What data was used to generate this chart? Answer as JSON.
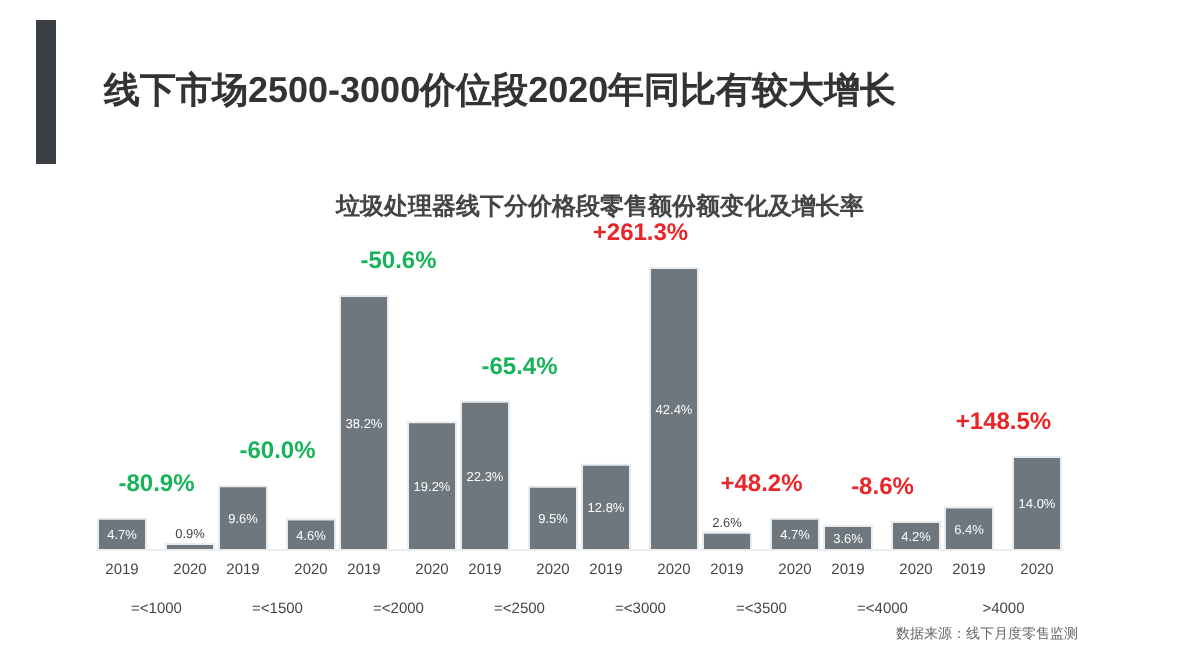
{
  "chart_data": {
    "type": "bar",
    "title": "线下市场2500-3000价位段2020年同比有较大增长",
    "subtitle": "垃圾处理器线下分价格段零售额份额变化及增长率",
    "categories": [
      "=<1000",
      "=<1500",
      "=<2000",
      "=<2500",
      "=<3000",
      "=<3500",
      "=<4000",
      ">4000"
    ],
    "series": [
      {
        "name": "2019",
        "color": "#6d777d",
        "values": [
          4.7,
          9.6,
          38.2,
          22.3,
          12.8,
          2.6,
          3.6,
          6.4
        ],
        "value_labels": [
          "4.7%",
          "9.6%",
          "38.2%",
          "22.3%",
          "12.8%",
          "2.6%",
          "3.6%",
          "6.4%"
        ]
      },
      {
        "name": "2020",
        "color": "#6d777d",
        "values": [
          0.9,
          4.6,
          19.2,
          9.5,
          42.4,
          4.7,
          4.2,
          14.0
        ],
        "value_labels": [
          "0.9%",
          "4.6%",
          "19.2%",
          "9.5%",
          "42.4%",
          "4.7%",
          "4.2%",
          "14.0%"
        ]
      }
    ],
    "annotations": [
      "-80.9%",
      "-60.0%",
      "-50.6%",
      "-65.4%",
      "+261.3%",
      "+48.2%",
      "-8.6%",
      "+148.5%",
      "数据来源：线下月度零售监测"
    ],
    "legend": false
  }
}
